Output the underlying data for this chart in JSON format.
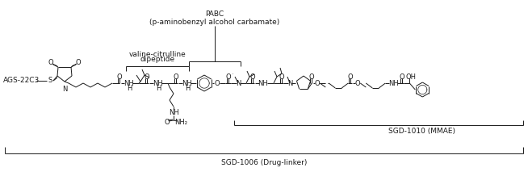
{
  "bg_color": "#ffffff",
  "line_color": "#1a1a1a",
  "text_color": "#1a1a1a",
  "label_AGS": "AGS-22C3",
  "label_vc": "valine-citrulline\ndipeptide",
  "label_PABC": "PABC\n(p-aminobenzyl alcohol carbamate)",
  "label_SGD1010": "SGD-1010 (MMAE)",
  "label_SGD1006": "SGD-1006 (Drug-linker)",
  "font_size_struct": 6.0,
  "font_size_label": 6.5,
  "fig_width": 6.54,
  "fig_height": 2.13,
  "dpi": 100
}
